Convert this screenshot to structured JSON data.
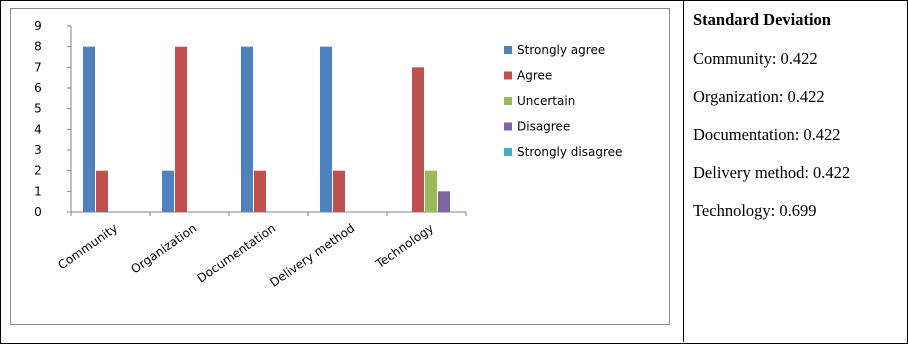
{
  "chart_data": {
    "type": "bar",
    "categories": [
      "Community",
      "Organization",
      "Documentation",
      "Delivery method",
      "Technology"
    ],
    "series": [
      {
        "name": "Strongly agree",
        "values": [
          8,
          2,
          8,
          8,
          0
        ],
        "color": "#4F81BD"
      },
      {
        "name": "Agree",
        "values": [
          2,
          8,
          2,
          2,
          7
        ],
        "color": "#C0504D"
      },
      {
        "name": "Uncertain",
        "values": [
          0,
          0,
          0,
          0,
          2
        ],
        "color": "#9BBB59"
      },
      {
        "name": "Disagree",
        "values": [
          0,
          0,
          0,
          0,
          1
        ],
        "color": "#8064A2"
      },
      {
        "name": "Strongly disagree",
        "values": [
          0,
          0,
          0,
          0,
          0
        ],
        "color": "#4BACC6"
      }
    ],
    "ylim": [
      0,
      9
    ],
    "yticks": [
      "0",
      "1",
      "2",
      "3",
      "4",
      "5",
      "6",
      "7",
      "8",
      "9"
    ],
    "grid": false,
    "legend_position": "right"
  },
  "stats": {
    "title": "Standard Deviation",
    "lines": [
      "Community: 0.422",
      "Organization: 0.422",
      "Documentation: 0.422",
      "Delivery method: 0.422",
      "Technology: 0.699"
    ]
  }
}
